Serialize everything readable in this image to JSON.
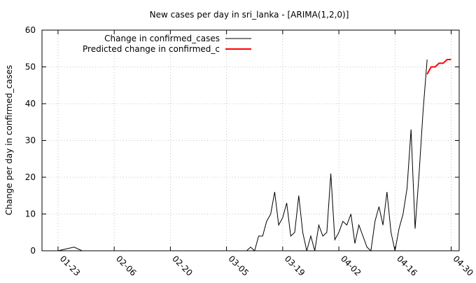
{
  "chart_data": {
    "type": "line",
    "title": "New cases per day in sri_lanka -  [ARIMA(1,2,0)]",
    "xlabel": "",
    "ylabel": "Change per day in confirmed_cases",
    "xlim": [
      "2020-01-19",
      "2020-05-02"
    ],
    "ylim": [
      0,
      60
    ],
    "grid": true,
    "legend_position": "top-right",
    "x_ticks": [
      "01-23",
      "02-06",
      "02-20",
      "03-05",
      "03-19",
      "04-02",
      "04-16",
      "04-30"
    ],
    "y_ticks": [
      0,
      10,
      20,
      30,
      40,
      50,
      60
    ],
    "series": [
      {
        "name": "Change in confirmed_cases",
        "color": "#000000",
        "points": [
          [
            "2020-01-23",
            0
          ],
          [
            "2020-01-27",
            1
          ],
          [
            "2020-01-29",
            0
          ],
          [
            "2020-03-10",
            0
          ],
          [
            "2020-03-11",
            1
          ],
          [
            "2020-03-12",
            0
          ],
          [
            "2020-03-13",
            4
          ],
          [
            "2020-03-14",
            4
          ],
          [
            "2020-03-15",
            8
          ],
          [
            "2020-03-16",
            10
          ],
          [
            "2020-03-17",
            16
          ],
          [
            "2020-03-18",
            7
          ],
          [
            "2020-03-19",
            9
          ],
          [
            "2020-03-20",
            13
          ],
          [
            "2020-03-21",
            4
          ],
          [
            "2020-03-22",
            5
          ],
          [
            "2020-03-23",
            15
          ],
          [
            "2020-03-24",
            5
          ],
          [
            "2020-03-25",
            0
          ],
          [
            "2020-03-26",
            4
          ],
          [
            "2020-03-27",
            0
          ],
          [
            "2020-03-28",
            7
          ],
          [
            "2020-03-29",
            4
          ],
          [
            "2020-03-30",
            5
          ],
          [
            "2020-03-31",
            21
          ],
          [
            "2020-04-01",
            3
          ],
          [
            "2020-04-02",
            5
          ],
          [
            "2020-04-03",
            8
          ],
          [
            "2020-04-04",
            7
          ],
          [
            "2020-04-05",
            10
          ],
          [
            "2020-04-06",
            2
          ],
          [
            "2020-04-07",
            7
          ],
          [
            "2020-04-08",
            4
          ],
          [
            "2020-04-09",
            1
          ],
          [
            "2020-04-10",
            0
          ],
          [
            "2020-04-11",
            8
          ],
          [
            "2020-04-12",
            12
          ],
          [
            "2020-04-13",
            7
          ],
          [
            "2020-04-14",
            16
          ],
          [
            "2020-04-15",
            5
          ],
          [
            "2020-04-16",
            0
          ],
          [
            "2020-04-17",
            6
          ],
          [
            "2020-04-18",
            10
          ],
          [
            "2020-04-19",
            17
          ],
          [
            "2020-04-20",
            33
          ],
          [
            "2020-04-21",
            6
          ],
          [
            "2020-04-22",
            21
          ],
          [
            "2020-04-23",
            38
          ],
          [
            "2020-04-24",
            52
          ]
        ]
      },
      {
        "name": "Predicted change in confirmed_c",
        "color": "#ff0000",
        "points": [
          [
            "2020-04-24",
            48
          ],
          [
            "2020-04-25",
            50
          ],
          [
            "2020-04-26",
            50
          ],
          [
            "2020-04-27",
            51
          ],
          [
            "2020-04-28",
            51
          ],
          [
            "2020-04-29",
            52
          ],
          [
            "2020-04-30",
            52
          ]
        ]
      }
    ]
  }
}
